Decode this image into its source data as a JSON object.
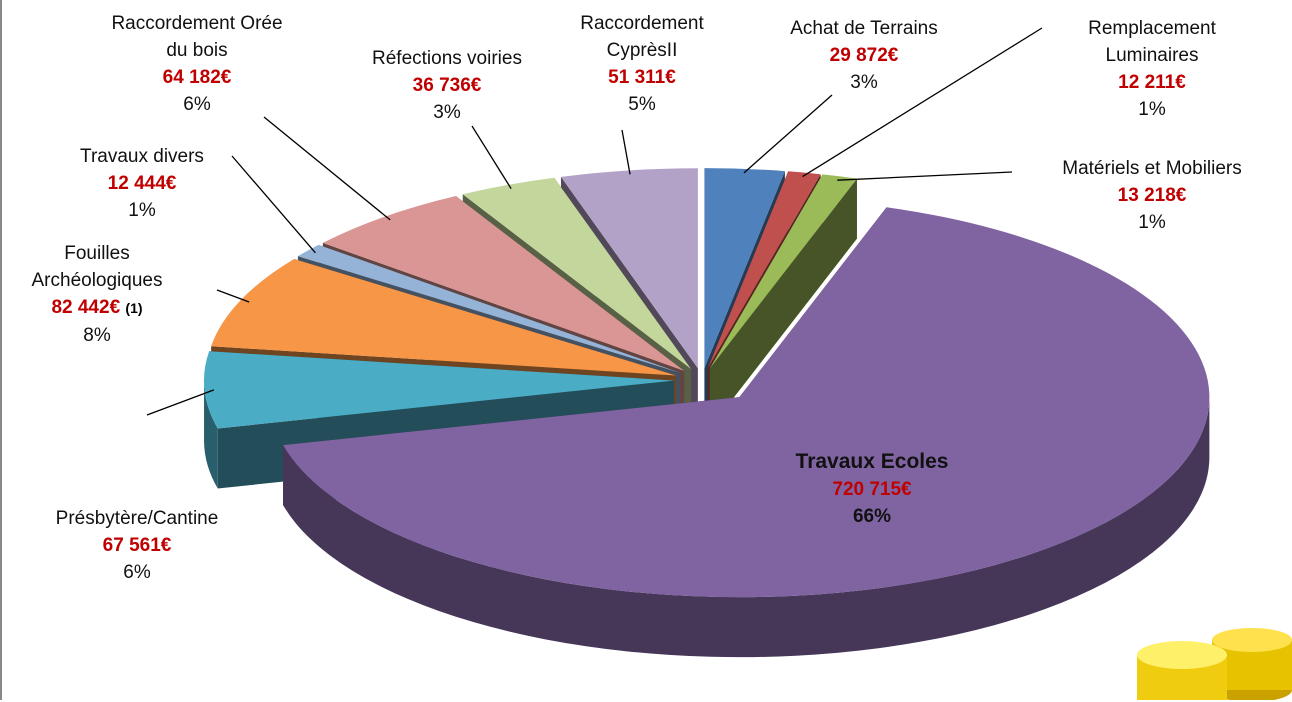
{
  "chart_data": {
    "type": "pie",
    "categories": [
      "Achat de Terrains",
      "Remplacement\nLuminaires",
      "Matériels et Mobiliers",
      "Travaux Ecoles",
      "Présbytère/Cantine",
      "Fouilles\nArchéologiques",
      "Travaux divers",
      "Raccordement Orée\ndu bois",
      "Réfections voiries",
      "Raccordement\nCyprèsII"
    ],
    "values": [
      29872,
      12211,
      13218,
      720715,
      67561,
      82442,
      12444,
      64182,
      36736,
      51311
    ],
    "value_labels": [
      "29 872€",
      "12 211€",
      "13 218€",
      "720 715€",
      "67 561€",
      "82 442€",
      "12 444€",
      "64 182€",
      "36 736€",
      "51 311€"
    ],
    "percent_labels": [
      "3%",
      "1%",
      "1%",
      "66%",
      "6%",
      "8%",
      "1%",
      "6%",
      "3%",
      "5%"
    ],
    "colors": [
      "#4f81bd",
      "#c0504d",
      "#9bbb59",
      "#8064a2",
      "#4bacc6",
      "#f79646",
      "#95b3d7",
      "#d99694",
      "#c3d69b",
      "#b3a2c7"
    ],
    "annotation": "(1)"
  }
}
